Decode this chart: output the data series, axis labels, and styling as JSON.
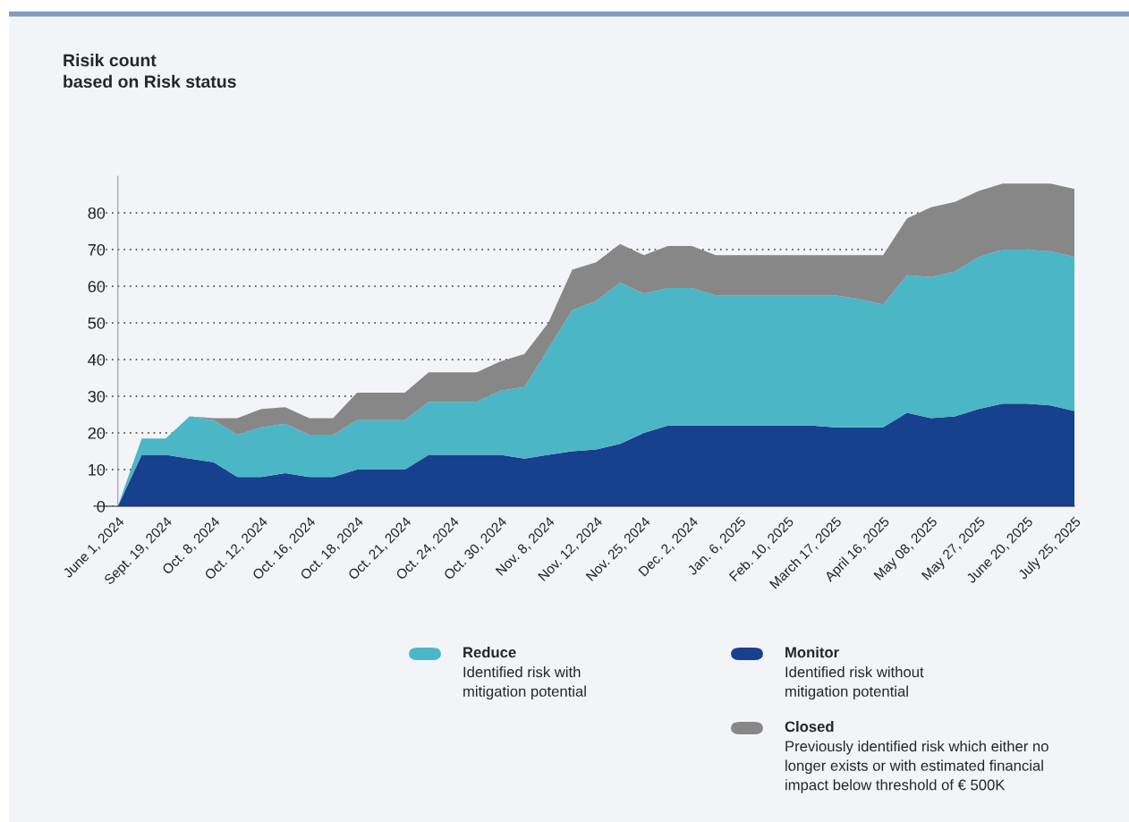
{
  "chart_data": {
    "type": "area",
    "title": "Risik count\nbased on Risk status",
    "categories": [
      "June 1, 2024",
      null,
      "Sept. 19, 2024",
      null,
      "Oct. 8, 2024",
      null,
      "Oct. 12, 2024",
      null,
      "Oct. 16, 2024",
      null,
      "Oct. 18, 2024",
      null,
      "Oct. 21, 2024",
      null,
      "Oct. 24, 2024",
      null,
      "Oct. 30, 2024",
      null,
      "Nov. 8, 2024",
      null,
      "Nov. 12, 2024",
      null,
      "Nov. 25, 2024",
      null,
      "Dec. 2, 2024",
      null,
      "Jan. 6, 2025",
      null,
      "Feb. 10, 2025",
      null,
      "March 17, 2025",
      null,
      "April 16, 2025",
      null,
      "May 08, 2025",
      null,
      "May 27, 2025",
      null,
      "June 20, 2025",
      null,
      "July 25, 2025"
    ],
    "stacked": true,
    "series": [
      {
        "name": "Monitor",
        "color": "#17408f",
        "values": [
          0,
          14,
          14,
          13,
          12,
          8,
          8,
          9,
          8,
          8,
          10,
          10,
          10,
          14,
          14,
          14,
          14,
          13,
          14,
          15,
          15.5,
          17,
          20,
          22,
          22,
          22,
          22,
          22,
          22,
          22,
          21.5,
          21.5,
          21.5,
          25.5,
          24,
          24.5,
          26.5,
          28,
          28,
          27.5,
          26
        ]
      },
      {
        "name": "Reduce",
        "color": "#4bb6c6",
        "values": [
          0,
          4.5,
          4.5,
          11.5,
          11.5,
          11.5,
          13.5,
          13.5,
          11.5,
          11.5,
          13.5,
          13.5,
          13.5,
          14.5,
          14.5,
          14.5,
          17.5,
          19.5,
          29,
          38.5,
          40.5,
          44,
          38,
          37.5,
          37.5,
          35.5,
          35.5,
          35.5,
          35.5,
          35.5,
          36,
          35,
          33.5,
          37.5,
          38.5,
          39.5,
          41.5,
          42,
          42,
          42,
          42
        ]
      },
      {
        "name": "Closed",
        "color": "#878787",
        "values": [
          0,
          0,
          0,
          0,
          0.5,
          4.5,
          5,
          4.5,
          4.5,
          4.5,
          7.5,
          7.5,
          7.5,
          8,
          8,
          8,
          8,
          9,
          7,
          11,
          10.5,
          10.5,
          10.5,
          11.5,
          11.5,
          11,
          11,
          11,
          11,
          11,
          11,
          12,
          13.5,
          15.5,
          19,
          19,
          18,
          18,
          18,
          18.5,
          18.5
        ]
      }
    ],
    "ylim": [
      0,
      90
    ],
    "yticks": [
      0,
      10,
      20,
      30,
      40,
      50,
      60,
      70,
      80
    ],
    "grid": "y",
    "legend": "bottom",
    "annotations": [
      "Identified risk without\nmitigation potential",
      "Identified risk with\nmitigation potential",
      "Previously identified risk which either no\nlonger exists or with estimated financial\nimpact below threshold of € 500K"
    ]
  }
}
